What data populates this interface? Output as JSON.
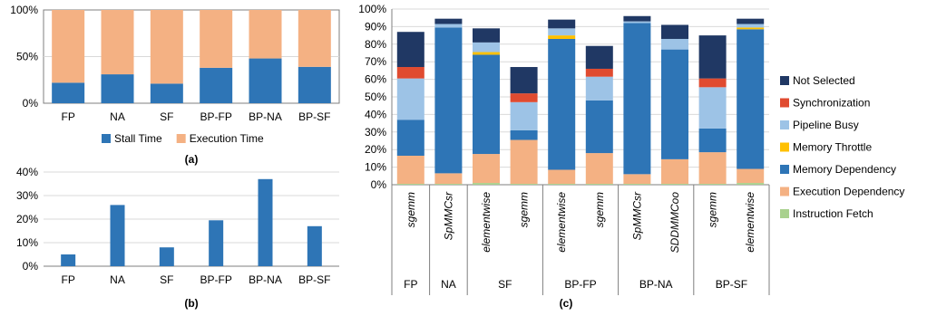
{
  "colors": {
    "stall": "#2E75B6",
    "exec": "#F4B183",
    "bar_b": "#2E75B6",
    "not_selected": "#203864",
    "synchronization": "#E04B30",
    "pipeline_busy": "#9DC3E6",
    "memory_throttle": "#FFC000",
    "memory_dependency": "#2E75B6",
    "execution_dependency": "#F4B183",
    "instruction_fetch": "#A9D18E",
    "grid": "#d9d9d9",
    "axis": "#7f7f7f",
    "divider": "#7f7f7f"
  },
  "captions": {
    "a": "(a)",
    "b": "(b)",
    "c": "(c)"
  },
  "chart_data": [
    {
      "id": "a",
      "type": "bar",
      "stacked": true,
      "categories": [
        "FP",
        "NA",
        "SF",
        "BP-FP",
        "BP-NA",
        "BP-SF"
      ],
      "y_ticks": [
        "0%",
        "50%",
        "100%"
      ],
      "ylim": [
        0,
        100
      ],
      "legend_position": "bottom",
      "series": [
        {
          "name": "Stall Time",
          "values": [
            22,
            31,
            21,
            38,
            48,
            39
          ]
        },
        {
          "name": "Execution Time",
          "values": [
            78,
            69,
            79,
            62,
            52,
            61
          ]
        }
      ]
    },
    {
      "id": "b",
      "type": "bar",
      "categories": [
        "FP",
        "NA",
        "SF",
        "BP-FP",
        "BP-NA",
        "BP-SF"
      ],
      "y_ticks": [
        "0%",
        "10%",
        "20%",
        "30%",
        "40%"
      ],
      "ylim": [
        0,
        40
      ],
      "values": [
        5,
        26,
        8,
        19.5,
        37,
        17
      ]
    },
    {
      "id": "c",
      "type": "bar",
      "stacked": true,
      "y_ticks": [
        "0%",
        "10%",
        "20%",
        "30%",
        "40%",
        "50%",
        "60%",
        "70%",
        "80%",
        "90%",
        "100%"
      ],
      "ylim": [
        0,
        100
      ],
      "legend_position": "right",
      "categories": [
        "sgemm",
        "SpMMCsr",
        "elementwise",
        "sgemm",
        "elementwise",
        "sgemm",
        "SpMMCsr",
        "SDDMMCoo",
        "sgemm",
        "elementwise"
      ],
      "groups": [
        {
          "label": "FP",
          "size": 1
        },
        {
          "label": "NA",
          "size": 1
        },
        {
          "label": "SF",
          "size": 2
        },
        {
          "label": "BP-FP",
          "size": 2
        },
        {
          "label": "BP-NA",
          "size": 2
        },
        {
          "label": "BP-SF",
          "size": 2
        }
      ],
      "series": [
        {
          "name": "Instruction Fetch",
          "values": [
            0.5,
            0.5,
            1,
            0.5,
            0.5,
            0.5,
            0.5,
            0.5,
            0.5,
            1
          ]
        },
        {
          "name": "Execution Dependency",
          "values": [
            16,
            6,
            16.5,
            25,
            8,
            17.5,
            5.5,
            14,
            18,
            8
          ]
        },
        {
          "name": "Memory Dependency",
          "values": [
            20.5,
            83,
            56.5,
            5.5,
            74.5,
            30,
            86,
            62.5,
            13.5,
            79.5
          ]
        },
        {
          "name": "Memory Throttle",
          "values": [
            0,
            0,
            1.5,
            0,
            2,
            0,
            0,
            0,
            0,
            1
          ]
        },
        {
          "name": "Pipeline Busy",
          "values": [
            23.5,
            2,
            5.5,
            16,
            4,
            13.5,
            1,
            6,
            23.5,
            2
          ]
        },
        {
          "name": "Synchronization",
          "values": [
            6.5,
            0,
            0,
            5,
            0,
            4.5,
            0,
            0,
            5,
            0
          ]
        },
        {
          "name": "Not Selected",
          "values": [
            20,
            3,
            8,
            15,
            5,
            13,
            3,
            8,
            24.5,
            3
          ]
        }
      ],
      "legend_order": [
        "Not Selected",
        "Synchronization",
        "Pipeline Busy",
        "Memory Throttle",
        "Memory Dependency",
        "Execution Dependency",
        "Instruction Fetch"
      ]
    }
  ]
}
